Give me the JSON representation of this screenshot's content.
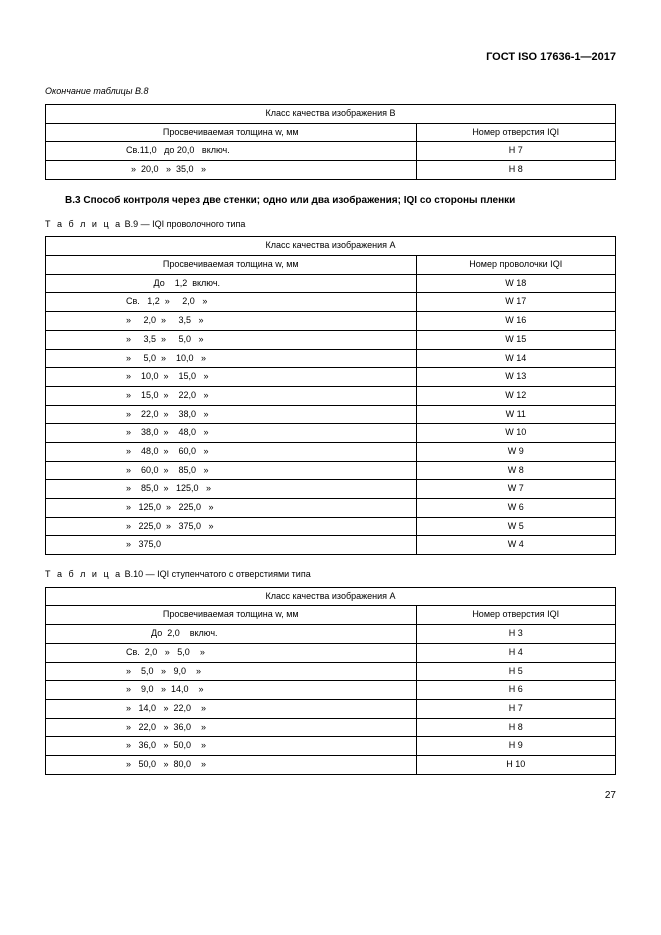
{
  "header": "ГОСТ ISO 17636-1—2017",
  "cont_label": "Окончание таблицы В.8",
  "t8": {
    "class_header": "Класс качества изображения В",
    "col1": "Просвечиваемая толщина w, мм",
    "col2": "Номер отверстия IQI",
    "rows": [
      {
        "r": "Св.11,0   до 20,0   включ.",
        "v": "H 7"
      },
      {
        "r": "  »  20,0   »  35,0   »",
        "v": "H 8"
      }
    ]
  },
  "section": {
    "num": "В.3",
    "txt": "Способ контроля через две стенки; одно или два изображения; IQI со стороны пленки"
  },
  "t9_label_a": "Т а б л и ц а",
  "t9_label_b": "  В.9  — IQI проволочного типа",
  "t9": {
    "class_header": "Класс качества изображения А",
    "col1": "Просвечиваемая толщина w, мм",
    "col2": "Номер проволочки IQI",
    "rows": [
      {
        "r": "           До    1,2  включ.",
        "v": "W 18"
      },
      {
        "r": "Св.   1,2  »     2,0   »",
        "v": "W 17"
      },
      {
        "r": "»     2,0  »     3,5   »",
        "v": "W 16"
      },
      {
        "r": "»     3,5  »     5,0   »",
        "v": "W 15"
      },
      {
        "r": "»     5,0  »    10,0   »",
        "v": "W 14"
      },
      {
        "r": "»    10,0  »    15,0   »",
        "v": "W 13"
      },
      {
        "r": "»    15,0  »    22,0   »",
        "v": "W 12"
      },
      {
        "r": "»    22,0  »    38,0   »",
        "v": "W 11"
      },
      {
        "r": "»    38,0  »    48,0   »",
        "v": "W 10"
      },
      {
        "r": "»    48,0  »    60,0   »",
        "v": "W 9"
      },
      {
        "r": "»    60,0  »    85,0   »",
        "v": "W 8"
      },
      {
        "r": "»    85,0  »   125,0   »",
        "v": "W 7"
      },
      {
        "r": "»   125,0  »   225,0   »",
        "v": "W 6"
      },
      {
        "r": "»   225,0  »   375,0   »",
        "v": "W 5"
      },
      {
        "r": "»   375,0",
        "v": "W 4"
      }
    ]
  },
  "t10_label_a": "Т а б л и ц а",
  "t10_label_b": "  В.10  — IQI ступенчатого с отверстиями типа",
  "t10": {
    "class_header": "Класс качества изображения А",
    "col1": "Просвечиваемая толщина w, мм",
    "col2": "Номер отверстия IQI",
    "rows": [
      {
        "r": "          До  2,0    включ.",
        "v": "H 3"
      },
      {
        "r": "Св.  2,0   »   5,0    »",
        "v": "H 4"
      },
      {
        "r": "»    5,0   »   9,0    »",
        "v": "H 5"
      },
      {
        "r": "»    9,0   »  14,0    »",
        "v": "H 6"
      },
      {
        "r": "»   14,0   »  22,0    »",
        "v": "H 7"
      },
      {
        "r": "»   22,0   »  36,0    »",
        "v": "H 8"
      },
      {
        "r": "»   36,0   »  50,0    »",
        "v": "H 9"
      },
      {
        "r": "»   50,0   »  80,0    »",
        "v": "H 10"
      }
    ]
  },
  "pagenum": "27"
}
